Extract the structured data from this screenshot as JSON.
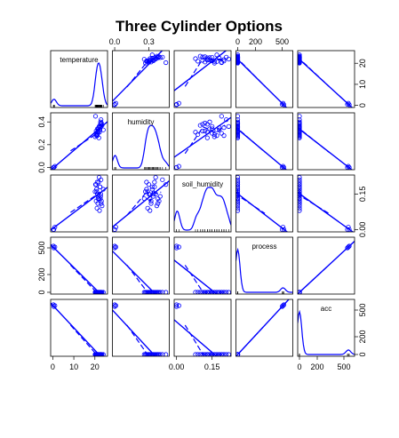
{
  "chart_data": {
    "type": "scatter",
    "title": "Three Cylinder Options",
    "variables": [
      "temperature",
      "humidity",
      "soil_humidity",
      "process",
      "acc"
    ],
    "ranges": {
      "temperature": [
        -1,
        26
      ],
      "humidity": [
        -0.02,
        0.48
      ],
      "soil_humidity": [
        -0.01,
        0.23
      ],
      "process": [
        -20,
        620
      ],
      "acc": [
        -20,
        620
      ]
    },
    "axis_ticks": {
      "top": [
        {
          "var": "humidity",
          "labels": [
            "0.0",
            "0.3"
          ],
          "values": [
            0.0,
            0.3
          ]
        },
        {
          "var": "process",
          "labels": [
            "0",
            "200",
            "500"
          ],
          "values": [
            0,
            200,
            500
          ]
        }
      ],
      "bottom": [
        {
          "var": "temperature",
          "labels": [
            "0",
            "10",
            "20"
          ],
          "values": [
            0,
            10,
            20
          ]
        },
        {
          "var": "soil_humidity",
          "labels": [
            "0.00",
            "0.15"
          ],
          "values": [
            0.0,
            0.15
          ]
        },
        {
          "var": "acc",
          "labels": [
            "0",
            "200",
            "500"
          ],
          "values": [
            0,
            200,
            500
          ]
        }
      ],
      "left": [
        {
          "var": "humidity",
          "labels": [
            "0.0",
            "0.2",
            "0.4"
          ],
          "values": [
            0.0,
            0.2,
            0.4
          ]
        },
        {
          "var": "process",
          "labels": [
            "0",
            "200",
            "500"
          ],
          "values": [
            0,
            200,
            500
          ]
        }
      ],
      "right": [
        {
          "var": "temperature",
          "labels": [
            "0",
            "10",
            "20"
          ],
          "values": [
            0,
            10,
            20
          ]
        },
        {
          "var": "soil_humidity",
          "labels": [
            "0.00",
            "0.15"
          ],
          "values": [
            0.0,
            0.15
          ]
        },
        {
          "var": "acc",
          "labels": [
            "0",
            "200",
            "500"
          ],
          "values": [
            0,
            200,
            500
          ]
        }
      ]
    },
    "points": {
      "temperature": [
        20.5,
        21.2,
        20.8,
        22.0,
        21.5,
        23.0,
        22.4,
        20.1,
        21.8,
        22.7,
        21.0,
        20.6,
        22.9,
        21.3,
        23.4,
        24.0,
        21.9,
        20.3,
        22.2,
        21.6,
        20.9,
        23.1,
        22.5,
        21.4,
        0.5,
        1.0,
        0.3,
        22.8,
        21.1,
        22.6
      ],
      "humidity": [
        0.3,
        0.34,
        0.28,
        0.36,
        0.31,
        0.38,
        0.33,
        0.27,
        0.35,
        0.4,
        0.29,
        0.32,
        0.42,
        0.3,
        0.37,
        0.33,
        0.26,
        0.45,
        0.31,
        0.34,
        0.29,
        0.39,
        0.35,
        0.32,
        0.0,
        0.01,
        0.0,
        0.36,
        0.28,
        0.38
      ],
      "soil_humidity": [
        0.19,
        0.15,
        0.17,
        0.22,
        0.13,
        0.11,
        0.18,
        0.16,
        0.2,
        0.14,
        0.09,
        0.12,
        0.21,
        0.15,
        0.1,
        0.17,
        0.13,
        0.19,
        0.08,
        0.14,
        0.16,
        0.12,
        0.18,
        0.11,
        0.0,
        0.01,
        0.0,
        0.15,
        0.2,
        0.13
      ],
      "process": [
        0,
        0,
        0,
        0,
        0,
        0,
        0,
        0,
        0,
        0,
        0,
        0,
        0,
        0,
        0,
        0,
        0,
        0,
        0,
        0,
        0,
        0,
        0,
        0,
        500,
        510,
        520,
        0,
        0,
        0
      ],
      "acc": [
        0,
        0,
        0,
        0,
        0,
        0,
        0,
        0,
        0,
        0,
        0,
        0,
        0,
        0,
        0,
        0,
        0,
        0,
        0,
        0,
        0,
        0,
        0,
        0,
        540,
        550,
        560,
        0,
        0,
        0
      ]
    },
    "colors": {
      "points": "#0000ff",
      "lines": "#0000ff",
      "frame": "#000000"
    }
  }
}
